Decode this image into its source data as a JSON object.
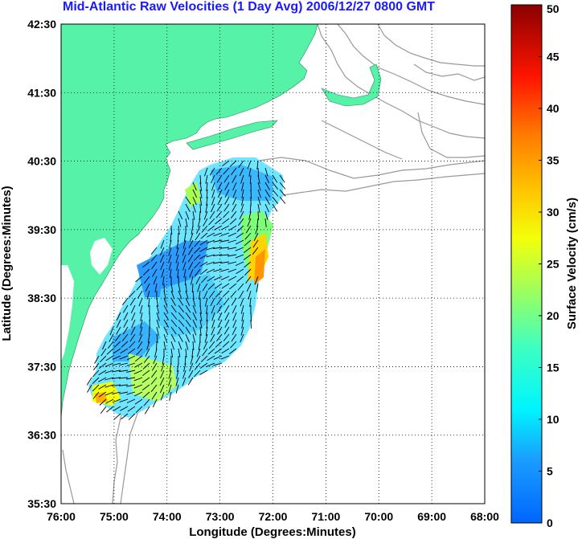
{
  "title": "Mid-Atlantic Raw Velocities (1 Day Avg) 2006/12/27 0800 GMT",
  "map": {
    "xlabel": "Longitude (Degrees:Minutes)",
    "ylabel": "Latitude (Degrees:Minutes)",
    "x_ticks": [
      "76:00",
      "75:00",
      "74:00",
      "73:00",
      "72:00",
      "71:00",
      "70:00",
      "69:00",
      "68:00"
    ],
    "y_ticks": [
      "42:30",
      "41:30",
      "40:30",
      "39:30",
      "38:30",
      "37:30",
      "36:30",
      "35:30"
    ],
    "lon_range": [
      -76,
      -68
    ],
    "lat_range": [
      35.5,
      42.5
    ],
    "grid": "dotted",
    "colors": {
      "land": "#55f2a8",
      "bathymetry": "#999999",
      "vectors": "#000000",
      "frame": "#000000"
    }
  },
  "colorbar": {
    "label": "Surface Velocity (cm/s)",
    "ticks": [
      "0",
      "5",
      "10",
      "15",
      "20",
      "25",
      "30",
      "35",
      "40",
      "45",
      "50"
    ],
    "range": [
      0,
      50
    ],
    "colormap": "jet"
  }
}
